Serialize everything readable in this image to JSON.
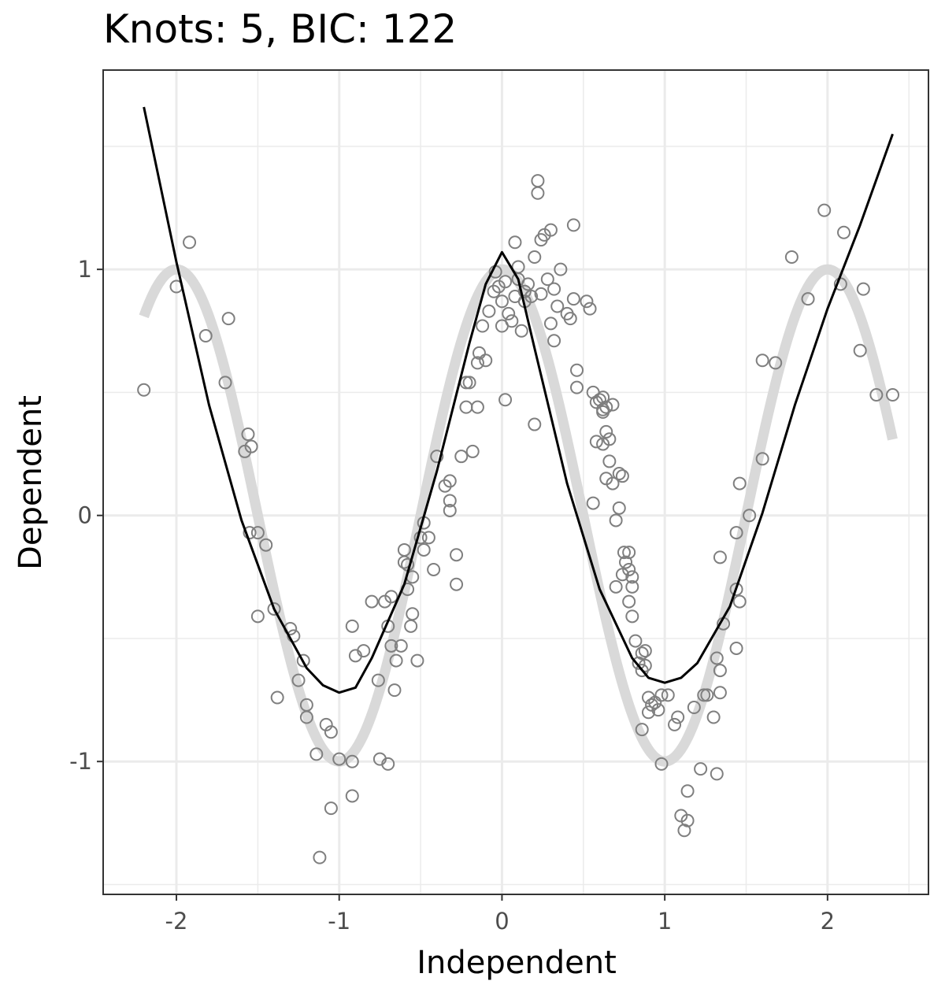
{
  "chart_data": {
    "type": "scatter",
    "title": "Knots: 5, BIC: 122",
    "xlabel": "Independent",
    "ylabel": "Dependent",
    "xlim": [
      -2.45,
      2.62
    ],
    "ylim": [
      -1.54,
      1.81
    ],
    "x_ticks": [
      -2,
      -1,
      0,
      1,
      2
    ],
    "y_ticks": [
      -1,
      0,
      1
    ],
    "x_tick_labels": [
      "-2",
      "-1",
      "0",
      "1",
      "2"
    ],
    "y_tick_labels": [
      "-1",
      "0",
      "1"
    ],
    "grid": true,
    "legend": "none",
    "colors": {
      "points": "#7f7f7f",
      "truth_curve": "#d9d9d9",
      "fit_curve": "#000000",
      "grid": "#ebebeb",
      "panel_border": "#333333"
    },
    "truth_curve": {
      "x_range": [
        -2.2,
        2.4
      ],
      "function": "cos(pi * x)"
    },
    "fit_curve": {
      "x": [
        -2.2,
        -2.0,
        -1.8,
        -1.6,
        -1.4,
        -1.2,
        -1.1,
        -1.0,
        -0.9,
        -0.8,
        -0.6,
        -0.4,
        -0.2,
        -0.1,
        0.0,
        0.1,
        0.2,
        0.4,
        0.6,
        0.8,
        0.9,
        1.0,
        1.1,
        1.2,
        1.4,
        1.6,
        1.8,
        2.0,
        2.2,
        2.4
      ],
      "y": [
        1.66,
        1.03,
        0.45,
        -0.02,
        -0.38,
        -0.62,
        -0.69,
        -0.72,
        -0.7,
        -0.58,
        -0.28,
        0.18,
        0.7,
        0.94,
        1.07,
        0.96,
        0.68,
        0.13,
        -0.3,
        -0.58,
        -0.66,
        -0.68,
        -0.66,
        -0.6,
        -0.37,
        0.01,
        0.45,
        0.84,
        1.18,
        1.55
      ]
    },
    "points": [
      [
        -2.2,
        0.51
      ],
      [
        -2.0,
        0.93
      ],
      [
        -1.92,
        1.11
      ],
      [
        -1.82,
        0.73
      ],
      [
        -1.7,
        0.54
      ],
      [
        -1.68,
        0.8
      ],
      [
        -1.58,
        0.26
      ],
      [
        -1.56,
        0.33
      ],
      [
        -1.54,
        0.28
      ],
      [
        -1.55,
        -0.07
      ],
      [
        -1.5,
        -0.07
      ],
      [
        -1.45,
        -0.12
      ],
      [
        -1.5,
        -0.41
      ],
      [
        -1.4,
        -0.38
      ],
      [
        -1.38,
        -0.74
      ],
      [
        -1.3,
        -0.46
      ],
      [
        -1.28,
        -0.49
      ],
      [
        -1.25,
        -0.67
      ],
      [
        -1.22,
        -0.59
      ],
      [
        -1.2,
        -0.77
      ],
      [
        -1.2,
        -0.82
      ],
      [
        -1.14,
        -0.97
      ],
      [
        -1.12,
        -1.39
      ],
      [
        -1.08,
        -0.85
      ],
      [
        -1.05,
        -0.88
      ],
      [
        -1.05,
        -1.19
      ],
      [
        -1.0,
        -0.99
      ],
      [
        -0.92,
        -0.45
      ],
      [
        -0.9,
        -0.57
      ],
      [
        -0.92,
        -1.0
      ],
      [
        -0.92,
        -1.14
      ],
      [
        -0.85,
        -0.55
      ],
      [
        -0.8,
        -0.35
      ],
      [
        -0.76,
        -0.67
      ],
      [
        -0.75,
        -0.99
      ],
      [
        -0.72,
        -0.35
      ],
      [
        -0.7,
        -0.45
      ],
      [
        -0.7,
        -1.01
      ],
      [
        -0.68,
        -0.53
      ],
      [
        -0.68,
        -0.33
      ],
      [
        -0.66,
        -0.71
      ],
      [
        -0.65,
        -0.59
      ],
      [
        -0.62,
        -0.53
      ],
      [
        -0.6,
        -0.14
      ],
      [
        -0.6,
        -0.19
      ],
      [
        -0.58,
        -0.2
      ],
      [
        -0.58,
        -0.3
      ],
      [
        -0.55,
        -0.4
      ],
      [
        -0.56,
        -0.45
      ],
      [
        -0.52,
        -0.59
      ],
      [
        -0.55,
        -0.25
      ],
      [
        -0.5,
        -0.09
      ],
      [
        -0.48,
        -0.03
      ],
      [
        -0.48,
        -0.14
      ],
      [
        -0.45,
        -0.09
      ],
      [
        -0.42,
        -0.22
      ],
      [
        -0.4,
        0.24
      ],
      [
        -0.35,
        0.12
      ],
      [
        -0.32,
        0.14
      ],
      [
        -0.32,
        0.06
      ],
      [
        -0.32,
        0.02
      ],
      [
        -0.28,
        -0.28
      ],
      [
        -0.28,
        -0.16
      ],
      [
        -0.25,
        0.24
      ],
      [
        -0.22,
        0.44
      ],
      [
        -0.22,
        0.54
      ],
      [
        -0.2,
        0.54
      ],
      [
        -0.18,
        0.26
      ],
      [
        -0.15,
        0.44
      ],
      [
        -0.15,
        0.62
      ],
      [
        -0.14,
        0.66
      ],
      [
        -0.12,
        0.77
      ],
      [
        -0.1,
        0.63
      ],
      [
        -0.08,
        0.83
      ],
      [
        -0.05,
        0.91
      ],
      [
        -0.04,
        0.99
      ],
      [
        -0.02,
        0.93
      ],
      [
        -0.0,
        0.77
      ],
      [
        0.02,
        0.47
      ],
      [
        0.0,
        0.87
      ],
      [
        0.02,
        0.95
      ],
      [
        0.04,
        0.82
      ],
      [
        0.06,
        0.79
      ],
      [
        0.08,
        0.89
      ],
      [
        0.08,
        1.11
      ],
      [
        0.1,
        1.01
      ],
      [
        0.12,
        0.75
      ],
      [
        0.1,
        0.96
      ],
      [
        0.14,
        0.87
      ],
      [
        0.14,
        0.91
      ],
      [
        0.16,
        0.94
      ],
      [
        0.18,
        0.89
      ],
      [
        0.2,
        1.05
      ],
      [
        0.2,
        0.37
      ],
      [
        0.22,
        1.36
      ],
      [
        0.22,
        1.31
      ],
      [
        0.24,
        0.9
      ],
      [
        0.24,
        1.12
      ],
      [
        0.26,
        1.14
      ],
      [
        0.28,
        0.96
      ],
      [
        0.3,
        1.16
      ],
      [
        0.3,
        0.78
      ],
      [
        0.32,
        0.92
      ],
      [
        0.32,
        0.71
      ],
      [
        0.34,
        0.85
      ],
      [
        0.36,
        1.0
      ],
      [
        0.4,
        0.82
      ],
      [
        0.42,
        0.8
      ],
      [
        0.44,
        1.18
      ],
      [
        0.44,
        0.88
      ],
      [
        0.46,
        0.59
      ],
      [
        0.46,
        0.52
      ],
      [
        0.52,
        0.87
      ],
      [
        0.54,
        0.84
      ],
      [
        0.56,
        0.5
      ],
      [
        0.58,
        0.46
      ],
      [
        0.58,
        0.3
      ],
      [
        0.6,
        0.47
      ],
      [
        0.62,
        0.48
      ],
      [
        0.62,
        0.43
      ],
      [
        0.62,
        0.42
      ],
      [
        0.64,
        0.44
      ],
      [
        0.64,
        0.34
      ],
      [
        0.66,
        0.31
      ],
      [
        0.66,
        0.22
      ],
      [
        0.68,
        0.13
      ],
      [
        0.64,
        0.15
      ],
      [
        0.56,
        0.05
      ],
      [
        0.62,
        0.29
      ],
      [
        0.68,
        0.45
      ],
      [
        0.7,
        -0.02
      ],
      [
        0.72,
        0.03
      ],
      [
        0.72,
        0.17
      ],
      [
        0.74,
        0.16
      ],
      [
        0.75,
        -0.15
      ],
      [
        0.76,
        -0.19
      ],
      [
        0.78,
        -0.15
      ],
      [
        0.78,
        -0.22
      ],
      [
        0.8,
        -0.25
      ],
      [
        0.8,
        -0.29
      ],
      [
        0.7,
        -0.29
      ],
      [
        0.74,
        -0.24
      ],
      [
        0.78,
        -0.35
      ],
      [
        0.8,
        -0.41
      ],
      [
        0.82,
        -0.51
      ],
      [
        0.84,
        -0.6
      ],
      [
        0.86,
        -0.56
      ],
      [
        0.86,
        -0.63
      ],
      [
        0.88,
        -0.55
      ],
      [
        0.88,
        -0.61
      ],
      [
        0.9,
        -0.74
      ],
      [
        0.9,
        -0.8
      ],
      [
        0.92,
        -0.77
      ],
      [
        0.94,
        -0.76
      ],
      [
        0.96,
        -0.79
      ],
      [
        0.98,
        -0.73
      ],
      [
        0.86,
        -0.87
      ],
      [
        1.08,
        -0.82
      ],
      [
        1.02,
        -0.73
      ],
      [
        0.98,
        -1.01
      ],
      [
        1.06,
        -0.85
      ],
      [
        1.1,
        -1.22
      ],
      [
        1.12,
        -1.28
      ],
      [
        1.14,
        -1.24
      ],
      [
        1.14,
        -1.12
      ],
      [
        1.18,
        -0.78
      ],
      [
        1.22,
        -1.03
      ],
      [
        1.24,
        -0.73
      ],
      [
        1.26,
        -0.73
      ],
      [
        1.3,
        -0.82
      ],
      [
        1.32,
        -0.58
      ],
      [
        1.32,
        -1.05
      ],
      [
        1.34,
        -0.72
      ],
      [
        1.36,
        -0.44
      ],
      [
        1.34,
        -0.63
      ],
      [
        1.34,
        -0.17
      ],
      [
        1.44,
        -0.3
      ],
      [
        1.44,
        -0.07
      ],
      [
        1.46,
        -0.35
      ],
      [
        1.44,
        -0.54
      ],
      [
        1.46,
        0.13
      ],
      [
        1.52,
        0.0
      ],
      [
        1.6,
        0.63
      ],
      [
        1.6,
        0.23
      ],
      [
        1.68,
        0.62
      ],
      [
        1.78,
        1.05
      ],
      [
        1.88,
        0.88
      ],
      [
        1.98,
        1.24
      ],
      [
        2.08,
        0.94
      ],
      [
        2.1,
        1.15
      ],
      [
        2.2,
        0.67
      ],
      [
        2.22,
        0.92
      ],
      [
        2.3,
        0.49
      ],
      [
        2.4,
        0.49
      ]
    ]
  }
}
